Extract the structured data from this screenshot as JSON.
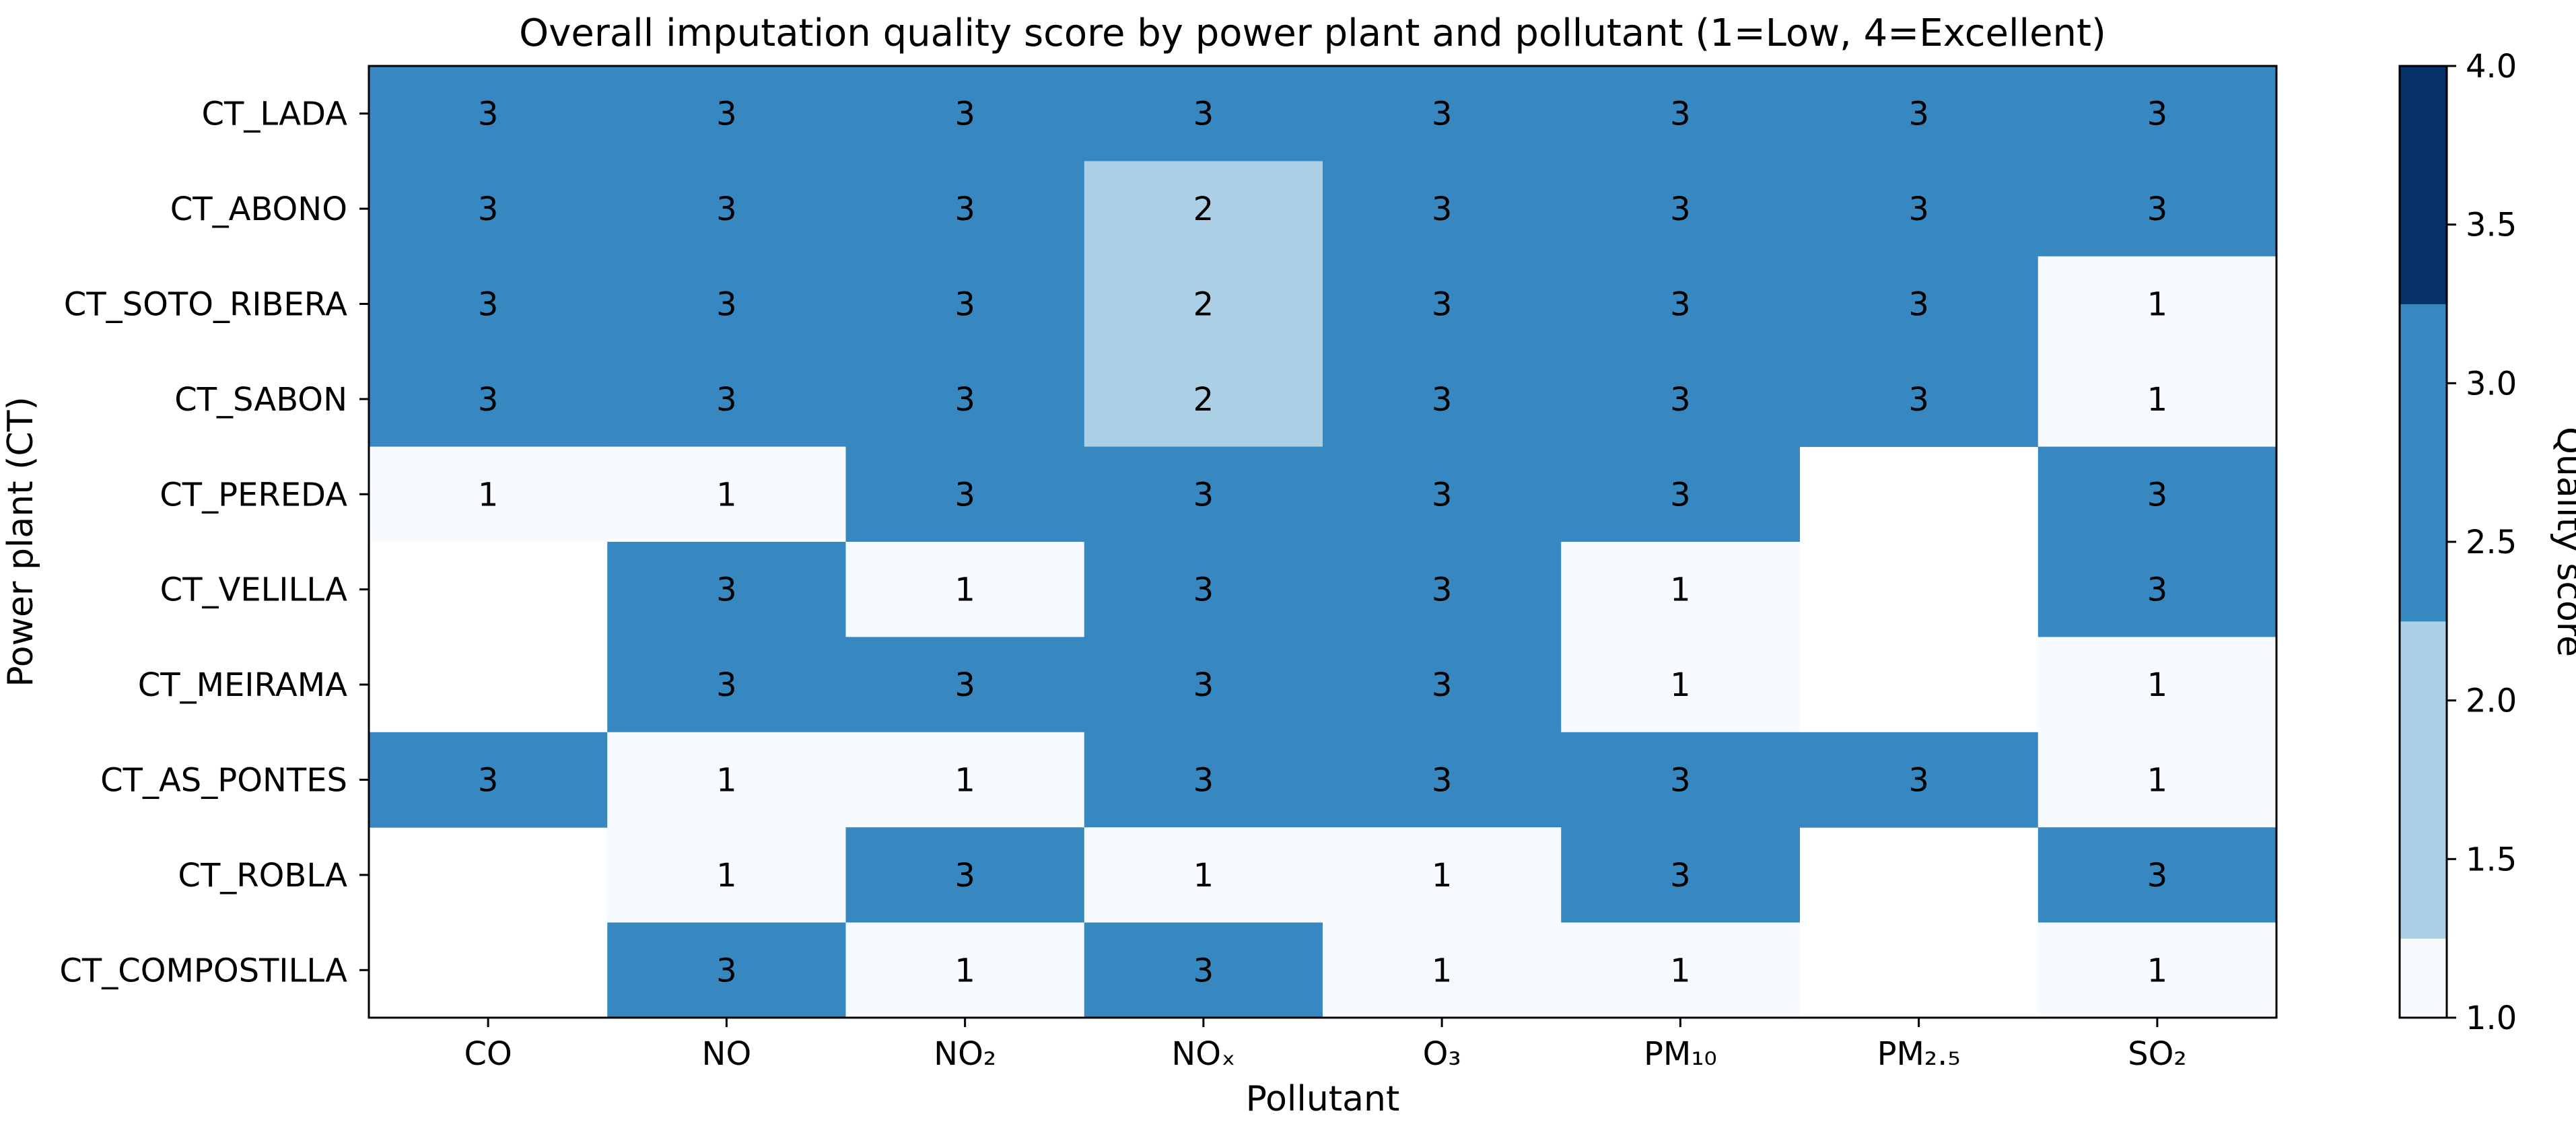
{
  "chart_data": {
    "type": "heatmap",
    "title": "Overall imputation quality score by power plant and pollutant (1=Low, 4=Excellent)",
    "xlabel": "Pollutant",
    "ylabel": "Power plant (CT)",
    "x_categories": [
      "CO",
      "NO",
      "NO₂",
      "NOₓ",
      "O₃",
      "PM₁₀",
      "PM₂.₅",
      "SO₂"
    ],
    "y_categories": [
      "CT_LADA",
      "CT_ABONO",
      "CT_SOTO_RIBERA",
      "CT_SABON",
      "CT_PEREDA",
      "CT_VELILLA",
      "CT_MEIRAMA",
      "CT_AS_PONTES",
      "CT_ROBLA",
      "CT_COMPOSTILLA"
    ],
    "values": [
      [
        3,
        3,
        3,
        3,
        3,
        3,
        3,
        3
      ],
      [
        3,
        3,
        3,
        2,
        3,
        3,
        3,
        3
      ],
      [
        3,
        3,
        3,
        2,
        3,
        3,
        3,
        1
      ],
      [
        3,
        3,
        3,
        2,
        3,
        3,
        3,
        1
      ],
      [
        1,
        1,
        3,
        3,
        3,
        3,
        null,
        3
      ],
      [
        null,
        3,
        1,
        3,
        3,
        1,
        null,
        3
      ],
      [
        null,
        3,
        3,
        3,
        3,
        1,
        null,
        1
      ],
      [
        3,
        1,
        1,
        3,
        3,
        3,
        3,
        1
      ],
      [
        null,
        1,
        3,
        1,
        1,
        3,
        null,
        3
      ],
      [
        null,
        3,
        1,
        3,
        1,
        1,
        null,
        1
      ]
    ],
    "colorbar": {
      "label": "Quality score",
      "range": [
        1.0,
        4.0
      ],
      "ticks": [
        "1.0",
        "1.5",
        "2.0",
        "2.5",
        "3.0",
        "3.5",
        "4.0"
      ],
      "colors": {
        "1": "#f7fbff",
        "2": "#abcfe5",
        "3": "#3787c0",
        "4": "#08306b"
      }
    },
    "grid": false,
    "legend": "right"
  }
}
